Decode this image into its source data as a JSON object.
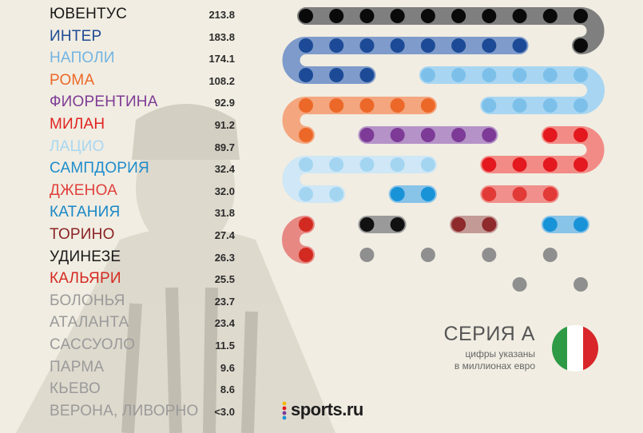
{
  "chart_data": {
    "type": "bar",
    "title": "СЕРИЯ А",
    "subtitle": "цифры указаны в миллионах евро",
    "categories": [
      "ЮВЕНТУС",
      "ИНТЕР",
      "НАПОЛИ",
      "РОМА",
      "ФИОРЕНТИНА",
      "МИЛАН",
      "ЛАЦИО",
      "САМПДОРИЯ",
      "ДЖЕНОА",
      "КАТАНИЯ",
      "ТОРИНО",
      "УДИНЕЗЕ",
      "КАЛЬЯРИ",
      "БОЛОНЬЯ",
      "АТАЛАНТА",
      "САССУОЛО",
      "ПАРМА",
      "КЬЕВО",
      "ВЕРОНА, ЛИВОРНО"
    ],
    "values": [
      213.8,
      183.8,
      174.1,
      108.2,
      92.9,
      91.2,
      89.7,
      32.4,
      32.0,
      31.8,
      27.4,
      26.3,
      25.5,
      23.7,
      23.4,
      11.5,
      9.6,
      8.6,
      3.0
    ],
    "value_labels": [
      "213.8",
      "183.8",
      "174.1",
      "108.2",
      "92.9",
      "91.2",
      "89.7",
      "32.4",
      "32.0",
      "31.8",
      "27.4",
      "26.3",
      "25.5",
      "23.7",
      "23.4",
      "11.5",
      "9.6",
      "8.6",
      "<3.0"
    ],
    "colors": [
      "#1a1a1a",
      "#1e4a93",
      "#72b4e2",
      "#ec6828",
      "#7f3c96",
      "#e02422",
      "#a8d7f2",
      "#1f8ccc",
      "#e1403d",
      "#1a88c6",
      "#8b2325",
      "#1a1a1a",
      "#d42a21",
      "#9a9a9a",
      "#9a9a9a",
      "#9a9a9a",
      "#9a9a9a",
      "#9a9a9a",
      "#9a9a9a"
    ],
    "bar_colors": [
      "#7f7f7f",
      "#7e9bcb",
      "#a8d6f2",
      "#f4a67e",
      "#b593c8",
      "#f28b86",
      "#cfe7f6",
      "#88c3e8",
      "#f08f8b",
      "#88c3e8",
      "#c49a97",
      "#9a9a9a",
      "#e78883",
      "#c2c0b9",
      "#c2c0b9",
      "#c2c0b9",
      "#c2c0b9",
      "#c2c0b9",
      "#c2c0b9"
    ],
    "dot_colors": [
      "#0a0a0a",
      "#1c4a96",
      "#7cc0ea",
      "#ec6828",
      "#7d3b97",
      "#e3191f",
      "#a3d5f1",
      "#1993d8",
      "#e23a37",
      "#1993d8",
      "#8e2a2c",
      "#111111",
      "#d22a20",
      "#8f8f8f",
      "#8f8f8f",
      "#8f8f8f",
      "#8f8f8f",
      "#8f8f8f",
      "#8f8f8f"
    ],
    "dots_per_club": [
      11,
      11,
      10,
      6,
      5,
      6,
      7,
      2,
      3,
      2,
      2,
      2,
      2,
      1,
      1,
      1,
      1,
      1,
      1
    ]
  },
  "note": {
    "line1": "цифры указаны",
    "line2": "в миллионах евро"
  },
  "brand": {
    "name": "sports.ru",
    "dot_colors": [
      "#f2b705",
      "#e3191f",
      "#7d3b97",
      "#1993d8"
    ]
  },
  "flag": {
    "colors": [
      "#2e9a46",
      "#ffffff",
      "#d8262a"
    ]
  }
}
